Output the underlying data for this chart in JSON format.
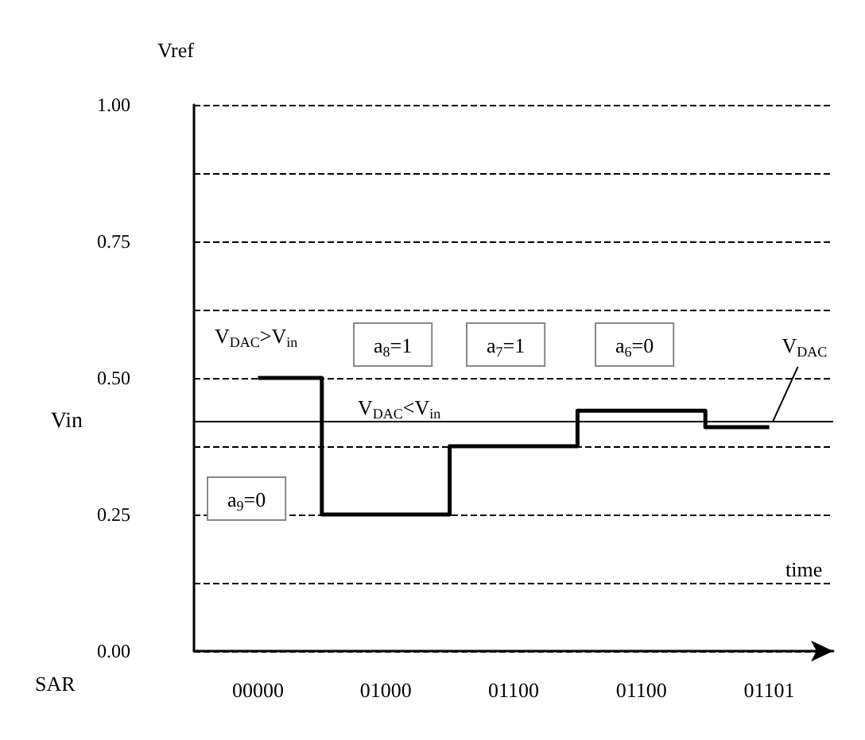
{
  "chart_data": {
    "type": "step",
    "xlabel": "time",
    "ylabel": "Vref",
    "categories": [
      "00000",
      "01000",
      "01100",
      "01100",
      "01101"
    ],
    "values": [
      0.5,
      0.25,
      0.375,
      0.44,
      0.41
    ],
    "color": "#000000",
    "ylim": [
      0,
      1
    ],
    "yticks": [
      {
        "value": 0,
        "label": "0.00"
      },
      {
        "value": 0.125,
        "label": null
      },
      {
        "value": 0.25,
        "label": "0.25"
      },
      {
        "value": 0.375,
        "label": null
      },
      {
        "value": 0.5,
        "label": "0.50"
      },
      {
        "value": 0.625,
        "label": null
      },
      {
        "value": 0.75,
        "label": "0.75"
      },
      {
        "value": 0.875,
        "label": null
      },
      {
        "value": 1,
        "label": "1.00"
      }
    ],
    "grid": "y",
    "marker": "none",
    "line_style": "solid",
    "ref_lines": [
      {
        "axis": "y",
        "value": 0.42,
        "label": "Vin",
        "color": "#000000"
      }
    ],
    "annotations": [
      "V$_{DAC}$>V$_{in}$",
      "a$_{9}$=0",
      "a$_{8}$=1",
      "a$_{7}$=1",
      "a$_{6}$=0",
      "V$_{DAC}$<V$_{in}$",
      "SAR",
      {
        "text": "V$_{DAC}$",
        "x": "01101",
        "y": 0.41
      }
    ]
  }
}
